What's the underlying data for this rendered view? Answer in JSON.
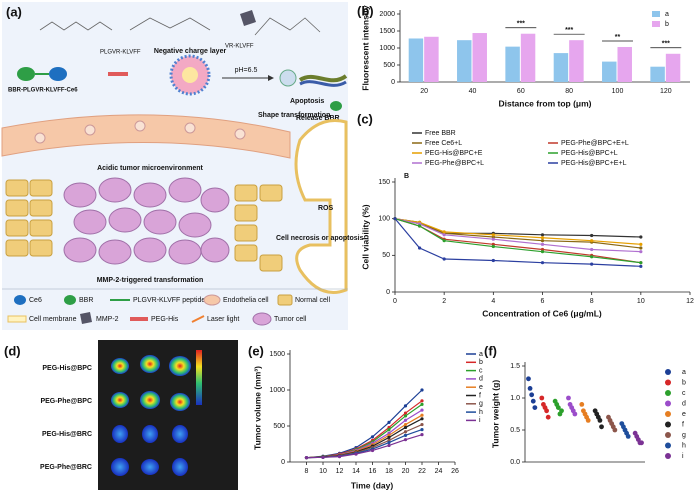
{
  "panel_a": {
    "label": "(a)",
    "compound": "BBR-PLGVR-KLVFF-Ce6",
    "peptide_tag": "PLGVR-KLVFF",
    "cleaved_tag": "VR-KLVFF",
    "negative_layer": "Negative charge layer",
    "ph": "pH=6.5",
    "apoptosis": "Apoptosis",
    "release": "Release BBR",
    "shape": "Shape transformation",
    "acidic": "Acidic tumor microenvironment",
    "ros": "ROS",
    "necrosis": "Cell necrosis or apoptosis",
    "mmp": "MMP-2-triggered transformation",
    "legend": [
      "Ce6",
      "BBR",
      "PLGVR-KLVFF peptide",
      "Endothelia cell",
      "Normal cell",
      "Cell membrane",
      "MMP-2",
      "PEG-His",
      "Laser light",
      "Tumor cell"
    ]
  },
  "panel_d": {
    "label": "(d)",
    "rows": [
      "PEG-His@BPC",
      "PEG-Phe@BPC",
      "PEG-His@BRC",
      "PEG-Phe@BRC"
    ]
  },
  "chart_data": [
    {
      "type": "bar",
      "panel_label": "(b)",
      "y_label": "Fluorescent intensity",
      "x_label": "Distance from top (μm)",
      "categories": [
        "20",
        "40",
        "60",
        "80",
        "100",
        "120"
      ],
      "series": [
        {
          "name": "a",
          "color": "#8ec5ec",
          "values": [
            1280,
            1230,
            1040,
            850,
            600,
            450
          ]
        },
        {
          "name": "b",
          "color": "#e6a6ee",
          "values": [
            1330,
            1440,
            1420,
            1230,
            1030,
            830
          ]
        }
      ],
      "ylim": [
        0,
        2000
      ],
      "yticks": [
        0,
        500,
        1000,
        1500,
        2000
      ],
      "annotations": [
        {
          "category": 2,
          "text": "***"
        },
        {
          "category": 3,
          "text": "***"
        },
        {
          "category": 4,
          "text": "**"
        },
        {
          "category": 5,
          "text": "***"
        }
      ]
    },
    {
      "type": "line",
      "panel_label": "(c)",
      "note": "B",
      "y_label": "Cell viability (%)",
      "x_label": "Concentration of Ce6 (μg/mL)",
      "x": [
        0,
        1,
        2,
        4,
        6,
        8,
        10
      ],
      "series": [
        {
          "name": "Free BBR",
          "color": "#333333",
          "values": [
            100,
            95,
            80,
            80,
            78,
            77,
            75
          ]
        },
        {
          "name": "Free Ce6+L",
          "color": "#8b6914",
          "values": [
            100,
            93,
            80,
            75,
            70,
            68,
            60
          ]
        },
        {
          "name": "PEG-His@BPC+E",
          "color": "#e69f00",
          "values": [
            100,
            95,
            82,
            78,
            74,
            70,
            65
          ]
        },
        {
          "name": "PEG-Phe@BPC+L",
          "color": "#b070d0",
          "values": [
            100,
            93,
            78,
            72,
            65,
            58,
            55
          ]
        },
        {
          "name": "PEG-Phe@BPC+E+L",
          "color": "#c0392b",
          "values": [
            100,
            90,
            72,
            65,
            58,
            50,
            40
          ]
        },
        {
          "name": "PEG-His@BPC+L",
          "color": "#2ca02c",
          "values": [
            100,
            90,
            70,
            62,
            55,
            48,
            40
          ]
        },
        {
          "name": "PEG-His@BPC+E+L",
          "color": "#2b3fa0",
          "values": [
            100,
            60,
            45,
            43,
            40,
            38,
            35
          ]
        }
      ],
      "xlim": [
        0,
        12
      ],
      "xticks": [
        0,
        2,
        4,
        6,
        8,
        10,
        12
      ],
      "ylim": [
        0,
        150
      ],
      "yticks": [
        0,
        50,
        100,
        150
      ]
    },
    {
      "type": "line",
      "panel_label": "(e)",
      "y_label": "Tumor volume (mm³)",
      "x_label": "Time (day)",
      "x": [
        8,
        10,
        12,
        14,
        16,
        18,
        20,
        22
      ],
      "series": [
        {
          "name": "a",
          "color": "#1c3f95",
          "values": [
            60,
            80,
            120,
            200,
            350,
            550,
            780,
            1000
          ]
        },
        {
          "name": "b",
          "color": "#d62728",
          "values": [
            60,
            75,
            110,
            180,
            300,
            480,
            680,
            850
          ]
        },
        {
          "name": "c",
          "color": "#2ca02c",
          "values": [
            60,
            75,
            100,
            170,
            280,
            450,
            640,
            800
          ]
        },
        {
          "name": "d",
          "color": "#9b4dca",
          "values": [
            60,
            70,
            100,
            160,
            260,
            400,
            580,
            720
          ]
        },
        {
          "name": "e",
          "color": "#e67e22",
          "values": [
            60,
            70,
            95,
            150,
            240,
            370,
            520,
            650
          ]
        },
        {
          "name": "f",
          "color": "#222222",
          "values": [
            60,
            70,
            90,
            140,
            220,
            340,
            480,
            600
          ]
        },
        {
          "name": "g",
          "color": "#8c564b",
          "values": [
            60,
            65,
            85,
            130,
            200,
            300,
            420,
            520
          ]
        },
        {
          "name": "h",
          "color": "#1f4e9c",
          "values": [
            60,
            65,
            80,
            120,
            180,
            270,
            370,
            450
          ]
        },
        {
          "name": "i",
          "color": "#7b3294",
          "values": [
            60,
            65,
            75,
            110,
            160,
            230,
            310,
            380
          ]
        }
      ],
      "xlim": [
        6,
        26
      ],
      "xticks": [
        8,
        10,
        12,
        14,
        16,
        18,
        20,
        22,
        24,
        26
      ],
      "ylim": [
        0,
        1500
      ],
      "yticks": [
        0,
        500,
        1000,
        1500
      ]
    },
    {
      "type": "strip",
      "panel_label": "(f)",
      "y_label": "Tumor weight (g)",
      "series": [
        {
          "name": "a",
          "color": "#1c3f95",
          "values": [
            1.3,
            1.15,
            1.05,
            0.95,
            0.85
          ]
        },
        {
          "name": "b",
          "color": "#d62728",
          "values": [
            1.0,
            0.9,
            0.85,
            0.8,
            0.7
          ]
        },
        {
          "name": "c",
          "color": "#2ca02c",
          "values": [
            0.95,
            0.9,
            0.85,
            0.75,
            0.8
          ]
        },
        {
          "name": "d",
          "color": "#9b4dca",
          "values": [
            1.0,
            0.9,
            0.85,
            0.8,
            0.75
          ]
        },
        {
          "name": "e",
          "color": "#e67e22",
          "values": [
            0.9,
            0.8,
            0.75,
            0.7,
            0.65
          ]
        },
        {
          "name": "f",
          "color": "#222222",
          "values": [
            0.8,
            0.75,
            0.7,
            0.65,
            0.55
          ]
        },
        {
          "name": "g",
          "color": "#8c564b",
          "values": [
            0.7,
            0.65,
            0.6,
            0.55,
            0.5
          ]
        },
        {
          "name": "h",
          "color": "#1f4e9c",
          "values": [
            0.6,
            0.55,
            0.5,
            0.45,
            0.4
          ]
        },
        {
          "name": "i",
          "color": "#7b3294",
          "values": [
            0.45,
            0.4,
            0.35,
            0.3,
            0.3
          ]
        }
      ],
      "ylim": [
        0,
        1.5
      ],
      "yticks": [
        {
          "value": 0,
          "label": "0.0"
        },
        {
          "value": 0.5,
          "label": "0.5"
        },
        {
          "value": 1,
          "label": "1.0"
        },
        {
          "value": 1.5,
          "label": "1.5"
        }
      ]
    }
  ]
}
